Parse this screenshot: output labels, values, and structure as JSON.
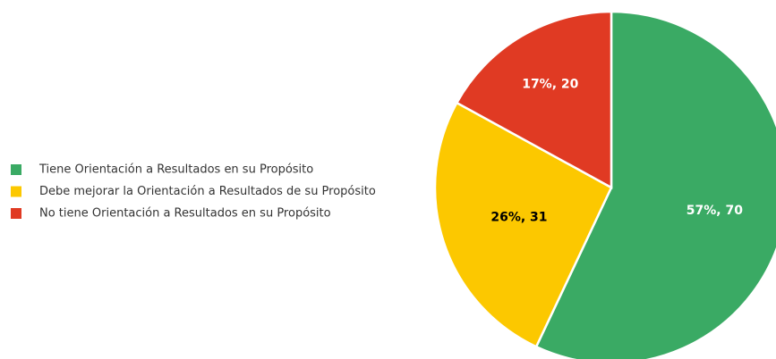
{
  "chart_data": {
    "type": "pie",
    "categories": [
      "Tiene Orientación a Resultados en su Propósito",
      "Debe mejorar la Orientación a Resultados de su Propósito",
      "No tiene Orientación a Resultados en su Propósito"
    ],
    "values": [
      57,
      26,
      17
    ],
    "counts": [
      70,
      31,
      20
    ],
    "value_labels": [
      "57%, 70",
      "26%, 31",
      "17%, 20"
    ],
    "colors": [
      "#3aaa64",
      "#fcc800",
      "#e03a23"
    ],
    "label_colors": [
      "#ffffff",
      "#000000",
      "#ffffff"
    ],
    "legend": "left"
  }
}
